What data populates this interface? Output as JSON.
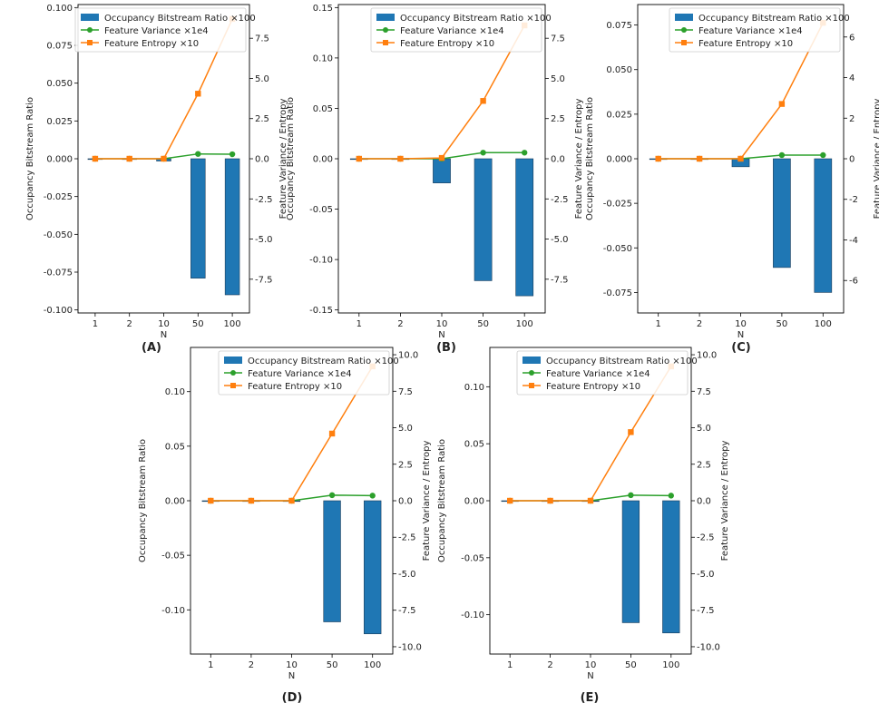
{
  "figure": {
    "legend_labels": [
      "Occupancy Bitstream Ratio ×100",
      "Feature Variance ×1e4",
      "Feature Entropy ×10"
    ],
    "colors": {
      "bar": "#1f77b4",
      "variance": "#2ca02c",
      "entropy": "#ff7f0e"
    }
  },
  "chart_data": [
    {
      "panel": "(A)",
      "type": "bar+line",
      "xlabel": "N",
      "ylabel_left": "Occupancy Bitstream Ratio",
      "ylabel_right": "Feature Variance / Entropy",
      "categories": [
        "1",
        "2",
        "10",
        "50",
        "100"
      ],
      "bar_values": [
        0.0,
        0.0,
        -0.0015,
        -0.079,
        -0.09
      ],
      "variance_values": [
        0.0,
        0.0,
        0.0,
        0.3,
        0.28
      ],
      "entropy_values": [
        0.0,
        0.0,
        0.0,
        4.05,
        8.7
      ],
      "ylim_left": [
        -0.102,
        0.102
      ],
      "ylim_right": [
        -9.6,
        9.6
      ],
      "yticks_left": [
        "0.100",
        "0.075",
        "0.050",
        "0.025",
        "0.000",
        "-0.025",
        "-0.050",
        "-0.075",
        "-0.100"
      ],
      "yticks_right": [
        "7.5",
        "5.0",
        "2.5",
        "0.0",
        "-2.5",
        "-5.0",
        "-7.5"
      ]
    },
    {
      "panel": "(B)",
      "type": "bar+line",
      "xlabel": "N",
      "ylabel_left": "Occupancy Bitstream Ratio",
      "ylabel_right": "Feature Variance / Entropy",
      "categories": [
        "1",
        "2",
        "10",
        "50",
        "100"
      ],
      "bar_values": [
        0.0,
        0.0,
        -0.024,
        -0.121,
        -0.136
      ],
      "variance_values": [
        0.0,
        0.0,
        0.0,
        0.38,
        0.38
      ],
      "entropy_values": [
        0.0,
        0.0,
        0.05,
        3.6,
        8.3
      ],
      "ylim_left": [
        -0.153,
        0.153
      ],
      "ylim_right": [
        -9.6,
        9.6
      ],
      "yticks_left": [
        "0.15",
        "0.10",
        "0.05",
        "0.00",
        "-0.05",
        "-0.10",
        "-0.15"
      ],
      "yticks_right": [
        "7.5",
        "5.0",
        "2.5",
        "0.0",
        "-2.5",
        "-5.0",
        "-7.5"
      ]
    },
    {
      "panel": "(C)",
      "type": "bar+line",
      "xlabel": "N",
      "ylabel_left": "Occupancy Bitstream Ratio",
      "ylabel_right": "Feature Variance / Entropy",
      "categories": [
        "1",
        "2",
        "10",
        "50",
        "100"
      ],
      "bar_values": [
        0.0,
        0.0,
        -0.0045,
        -0.061,
        -0.075
      ],
      "variance_values": [
        0.0,
        0.0,
        0.0,
        0.18,
        0.18
      ],
      "entropy_values": [
        0.0,
        0.0,
        0.0,
        2.7,
        6.7
      ],
      "ylim_left": [
        -0.0865,
        0.0865
      ],
      "ylim_right": [
        -7.6,
        7.6
      ],
      "yticks_left": [
        "0.075",
        "0.050",
        "0.025",
        "0.000",
        "-0.025",
        "-0.050",
        "-0.075"
      ],
      "yticks_right": [
        "6",
        "4",
        "2",
        "0",
        "-2",
        "-4",
        "-6"
      ]
    },
    {
      "panel": "(D)",
      "type": "bar+line",
      "xlabel": "N",
      "ylabel_left": "Occupancy Bitstream Ratio",
      "ylabel_right": "Feature Variance / Entropy",
      "categories": [
        "1",
        "2",
        "10",
        "50",
        "100"
      ],
      "bar_values": [
        0.0,
        0.0,
        0.0,
        -0.111,
        -0.122
      ],
      "variance_values": [
        0.0,
        0.0,
        0.0,
        0.38,
        0.35
      ],
      "entropy_values": [
        0.0,
        0.0,
        0.0,
        4.6,
        9.2
      ],
      "ylim_left": [
        -0.1405,
        0.1405
      ],
      "ylim_right": [
        -10.5,
        10.5
      ],
      "yticks_left": [
        "0.10",
        "0.05",
        "0.00",
        "-0.05",
        "-0.10"
      ],
      "yticks_right": [
        "10.0",
        "7.5",
        "5.0",
        "2.5",
        "0.0",
        "-2.5",
        "-5.0",
        "-7.5",
        "-10.0"
      ]
    },
    {
      "panel": "(E)",
      "type": "bar+line",
      "xlabel": "N",
      "ylabel_left": "Occupancy Bitstream Ratio",
      "ylabel_right": "Feature Variance / Entropy",
      "categories": [
        "1",
        "2",
        "10",
        "50",
        "100"
      ],
      "bar_values": [
        0.0,
        0.0,
        0.0,
        -0.107,
        -0.116
      ],
      "variance_values": [
        0.0,
        0.0,
        0.0,
        0.38,
        0.35
      ],
      "entropy_values": [
        0.0,
        0.0,
        0.0,
        4.7,
        9.2
      ],
      "ylim_left": [
        -0.1345,
        0.1345
      ],
      "ylim_right": [
        -10.5,
        10.5
      ],
      "yticks_left": [
        "0.10",
        "0.05",
        "0.00",
        "-0.05",
        "-0.10"
      ],
      "yticks_right": [
        "10.0",
        "7.5",
        "5.0",
        "2.5",
        "0.0",
        "-2.5",
        "-5.0",
        "-7.5",
        "-10.0"
      ]
    }
  ]
}
